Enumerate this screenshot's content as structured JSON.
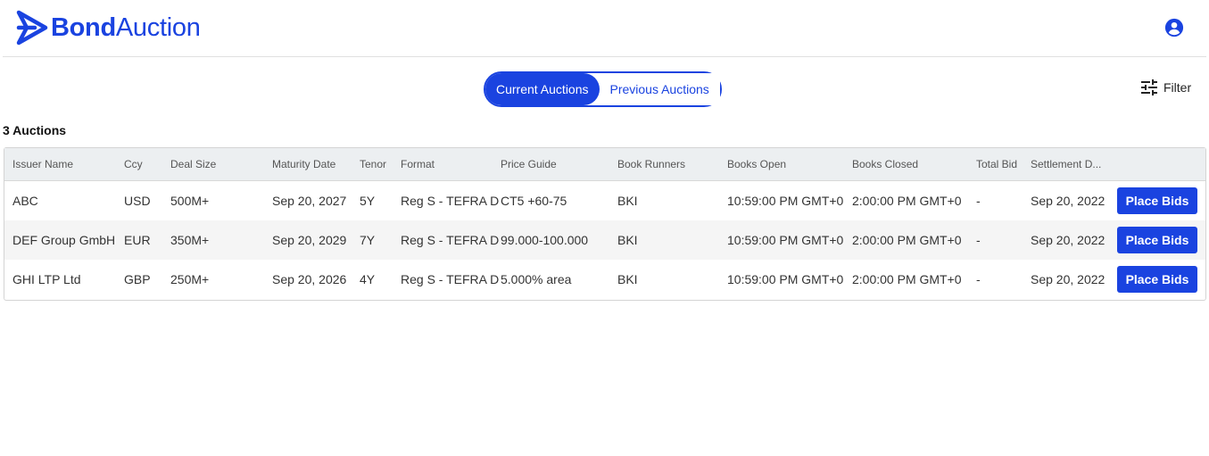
{
  "app": {
    "logo_bold": "Bond",
    "logo_light": "Auction",
    "accent_color": "#1a43e0"
  },
  "header": {
    "account_icon": "account-circle-icon"
  },
  "toggle": {
    "current_label": "Current Auctions",
    "previous_label": "Previous Auctions",
    "selected": "Current Auctions"
  },
  "filter": {
    "label": "Filter",
    "icon": "tune-icon"
  },
  "summary": {
    "count_label": "3 Auctions"
  },
  "table": {
    "columns": [
      "Issuer Name",
      "Ccy",
      "Deal Size",
      "Maturity Date",
      "Tenor",
      "Format",
      "Price Guide",
      "Book Runners",
      "Books Open",
      "Books Closed",
      "Total Bid",
      "Settlement D..."
    ],
    "rows": [
      {
        "issuer": "ABC",
        "ccy": "USD",
        "deal_size": "500M+",
        "maturity": "Sep 20, 2027",
        "tenor": "5Y",
        "format": "Reg S - TEFRA D",
        "price_guide": "CT5 +60-75",
        "book_runners": "BKI",
        "books_open": "10:59:00 PM GMT+0",
        "books_closed": "2:00:00 PM GMT+0",
        "total_bid": "-",
        "settlement": "Sep 20, 2022",
        "action": "Place Bids"
      },
      {
        "issuer": "DEF Group GmbH",
        "ccy": "EUR",
        "deal_size": "350M+",
        "maturity": "Sep 20, 2029",
        "tenor": "7Y",
        "format": "Reg S - TEFRA D",
        "price_guide": "99.000-100.000",
        "book_runners": "BKI",
        "books_open": "10:59:00 PM GMT+0",
        "books_closed": "2:00:00 PM GMT+0",
        "total_bid": "-",
        "settlement": "Sep 20, 2022",
        "action": "Place Bids"
      },
      {
        "issuer": "GHI LTP Ltd",
        "ccy": "GBP",
        "deal_size": "250M+",
        "maturity": "Sep 20, 2026",
        "tenor": "4Y",
        "format": "Reg S - TEFRA D",
        "price_guide": "5.000% area",
        "book_runners": "BKI",
        "books_open": "10:59:00 PM GMT+0",
        "books_closed": "2:00:00 PM GMT+0",
        "total_bid": "-",
        "settlement": "Sep 20, 2022",
        "action": "Place Bids"
      }
    ]
  }
}
